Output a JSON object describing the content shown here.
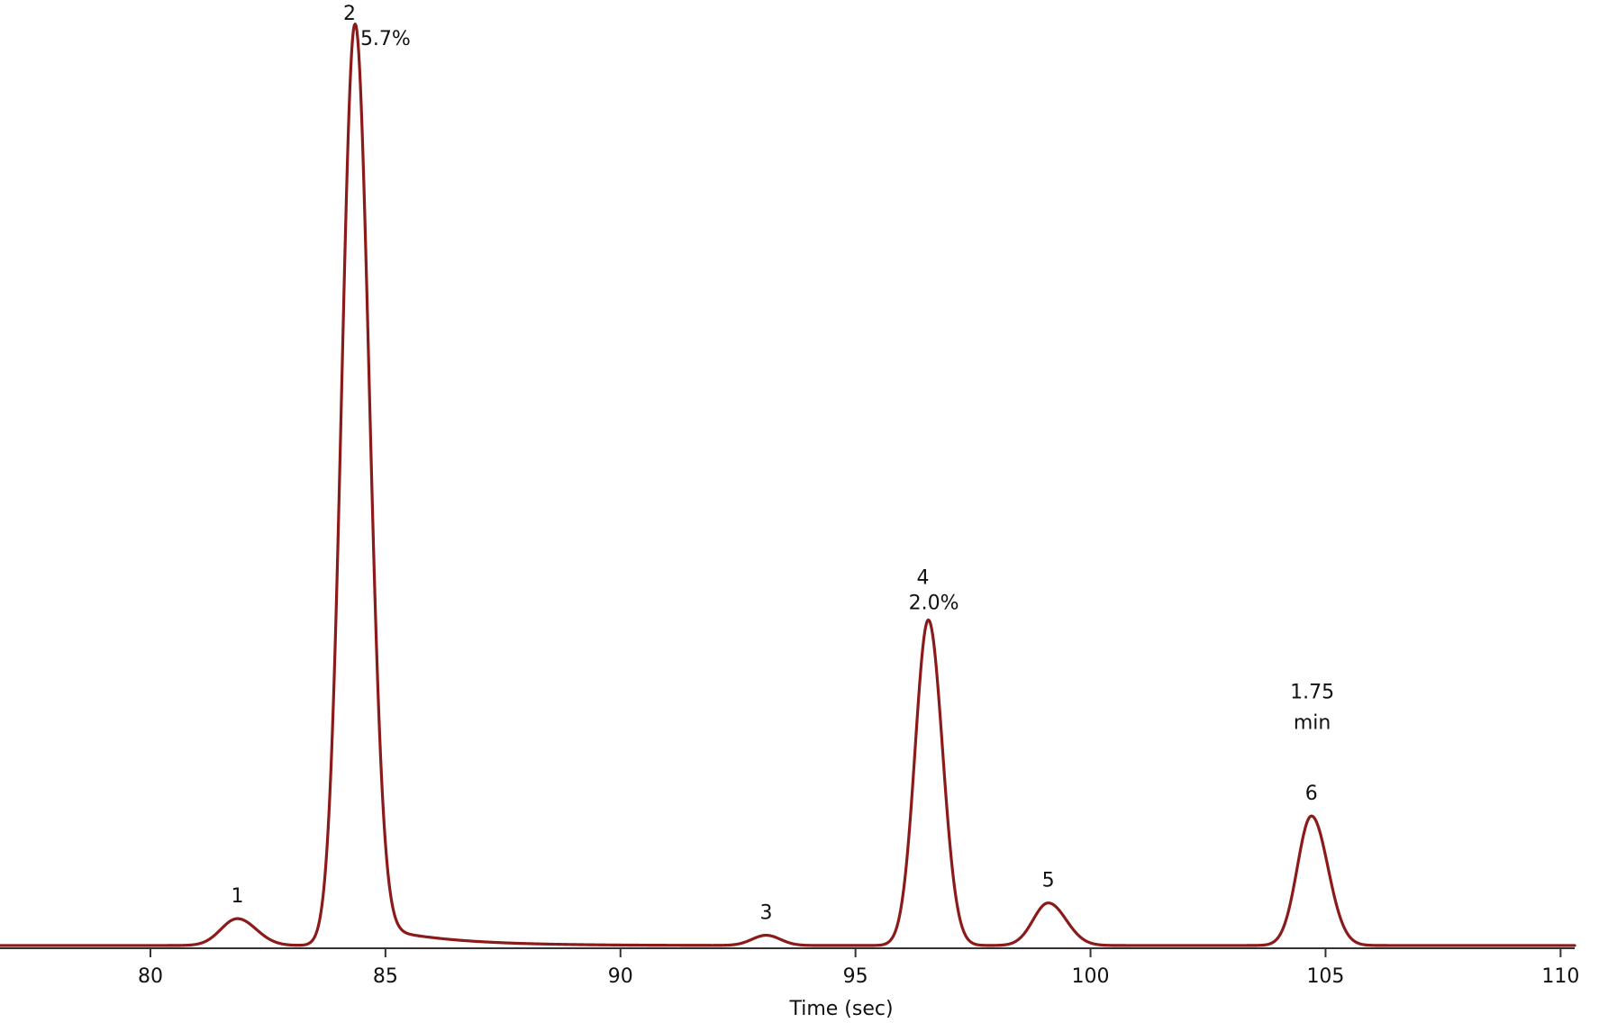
{
  "chart_data": {
    "type": "line",
    "title": "",
    "xlabel": "Time (sec)",
    "ylabel": "",
    "xlim": [
      76.8,
      110.3
    ],
    "ylim": [
      0,
      100
    ],
    "x_ticks": [
      80,
      85,
      90,
      95,
      100,
      105,
      110
    ],
    "grid": false,
    "legend": "none",
    "line_color": "#8b1a1a",
    "baseline": 0.3,
    "peaks": [
      {
        "label": "1",
        "value_label": "",
        "x": 81.85,
        "height": 2.9,
        "width_left": 0.35,
        "width_right": 0.4
      },
      {
        "label": "2",
        "value_label": "5.7%",
        "x": 84.35,
        "height": 99.6,
        "width_left": 0.28,
        "width_right": 0.3
      },
      {
        "label": "3",
        "value_label": "",
        "x": 93.1,
        "height": 1.1,
        "width_left": 0.3,
        "width_right": 0.3
      },
      {
        "label": "4",
        "value_label": "2.0%",
        "x": 96.55,
        "height": 35.2,
        "width_left": 0.28,
        "width_right": 0.3
      },
      {
        "label": "5",
        "value_label": "",
        "x": 99.1,
        "height": 4.6,
        "width_left": 0.32,
        "width_right": 0.38
      },
      {
        "label": "6",
        "value_label": "",
        "x": 104.7,
        "height": 14.0,
        "width_left": 0.3,
        "width_right": 0.35
      }
    ],
    "tail": {
      "start": 84.35,
      "amplitude": 2.8,
      "decay": 1.4
    },
    "annotation": {
      "lines": [
        "1.75",
        "min"
      ],
      "x": 104.6,
      "y": 27
    }
  }
}
